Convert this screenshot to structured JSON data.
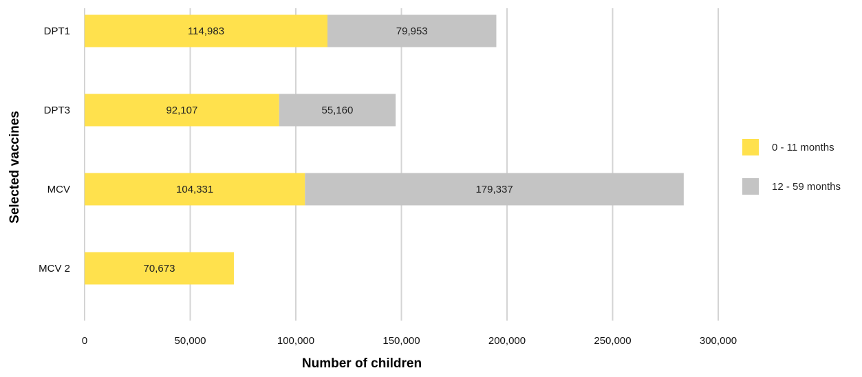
{
  "chart_data": {
    "type": "bar",
    "orientation": "horizontal",
    "stacked": true,
    "title": "",
    "xlabel": "Number of children",
    "ylabel": "Selected vaccines",
    "categories": [
      "DPT1",
      "DPT3",
      "MCV",
      "MCV 2"
    ],
    "series": [
      {
        "name": "0 - 11 months",
        "color": "#FFE14D",
        "values": [
          114983,
          92107,
          104331,
          70673
        ],
        "labels": [
          "114,983",
          "92,107",
          "104,331",
          "70,673"
        ]
      },
      {
        "name": "12 - 59 months",
        "color": "#C4C4C4",
        "values": [
          79953,
          55160,
          179337,
          null
        ],
        "labels": [
          "79,953",
          "55,160",
          "179,337",
          ""
        ]
      }
    ],
    "xlim": [
      0,
      300000
    ],
    "xticks": [
      0,
      50000,
      100000,
      150000,
      200000,
      250000,
      300000
    ],
    "xtick_labels": [
      "0",
      "50,000",
      "100,000",
      "150,000",
      "200,000",
      "250,000",
      "300,000"
    ],
    "grid": "vertical",
    "legend_position": "right"
  }
}
